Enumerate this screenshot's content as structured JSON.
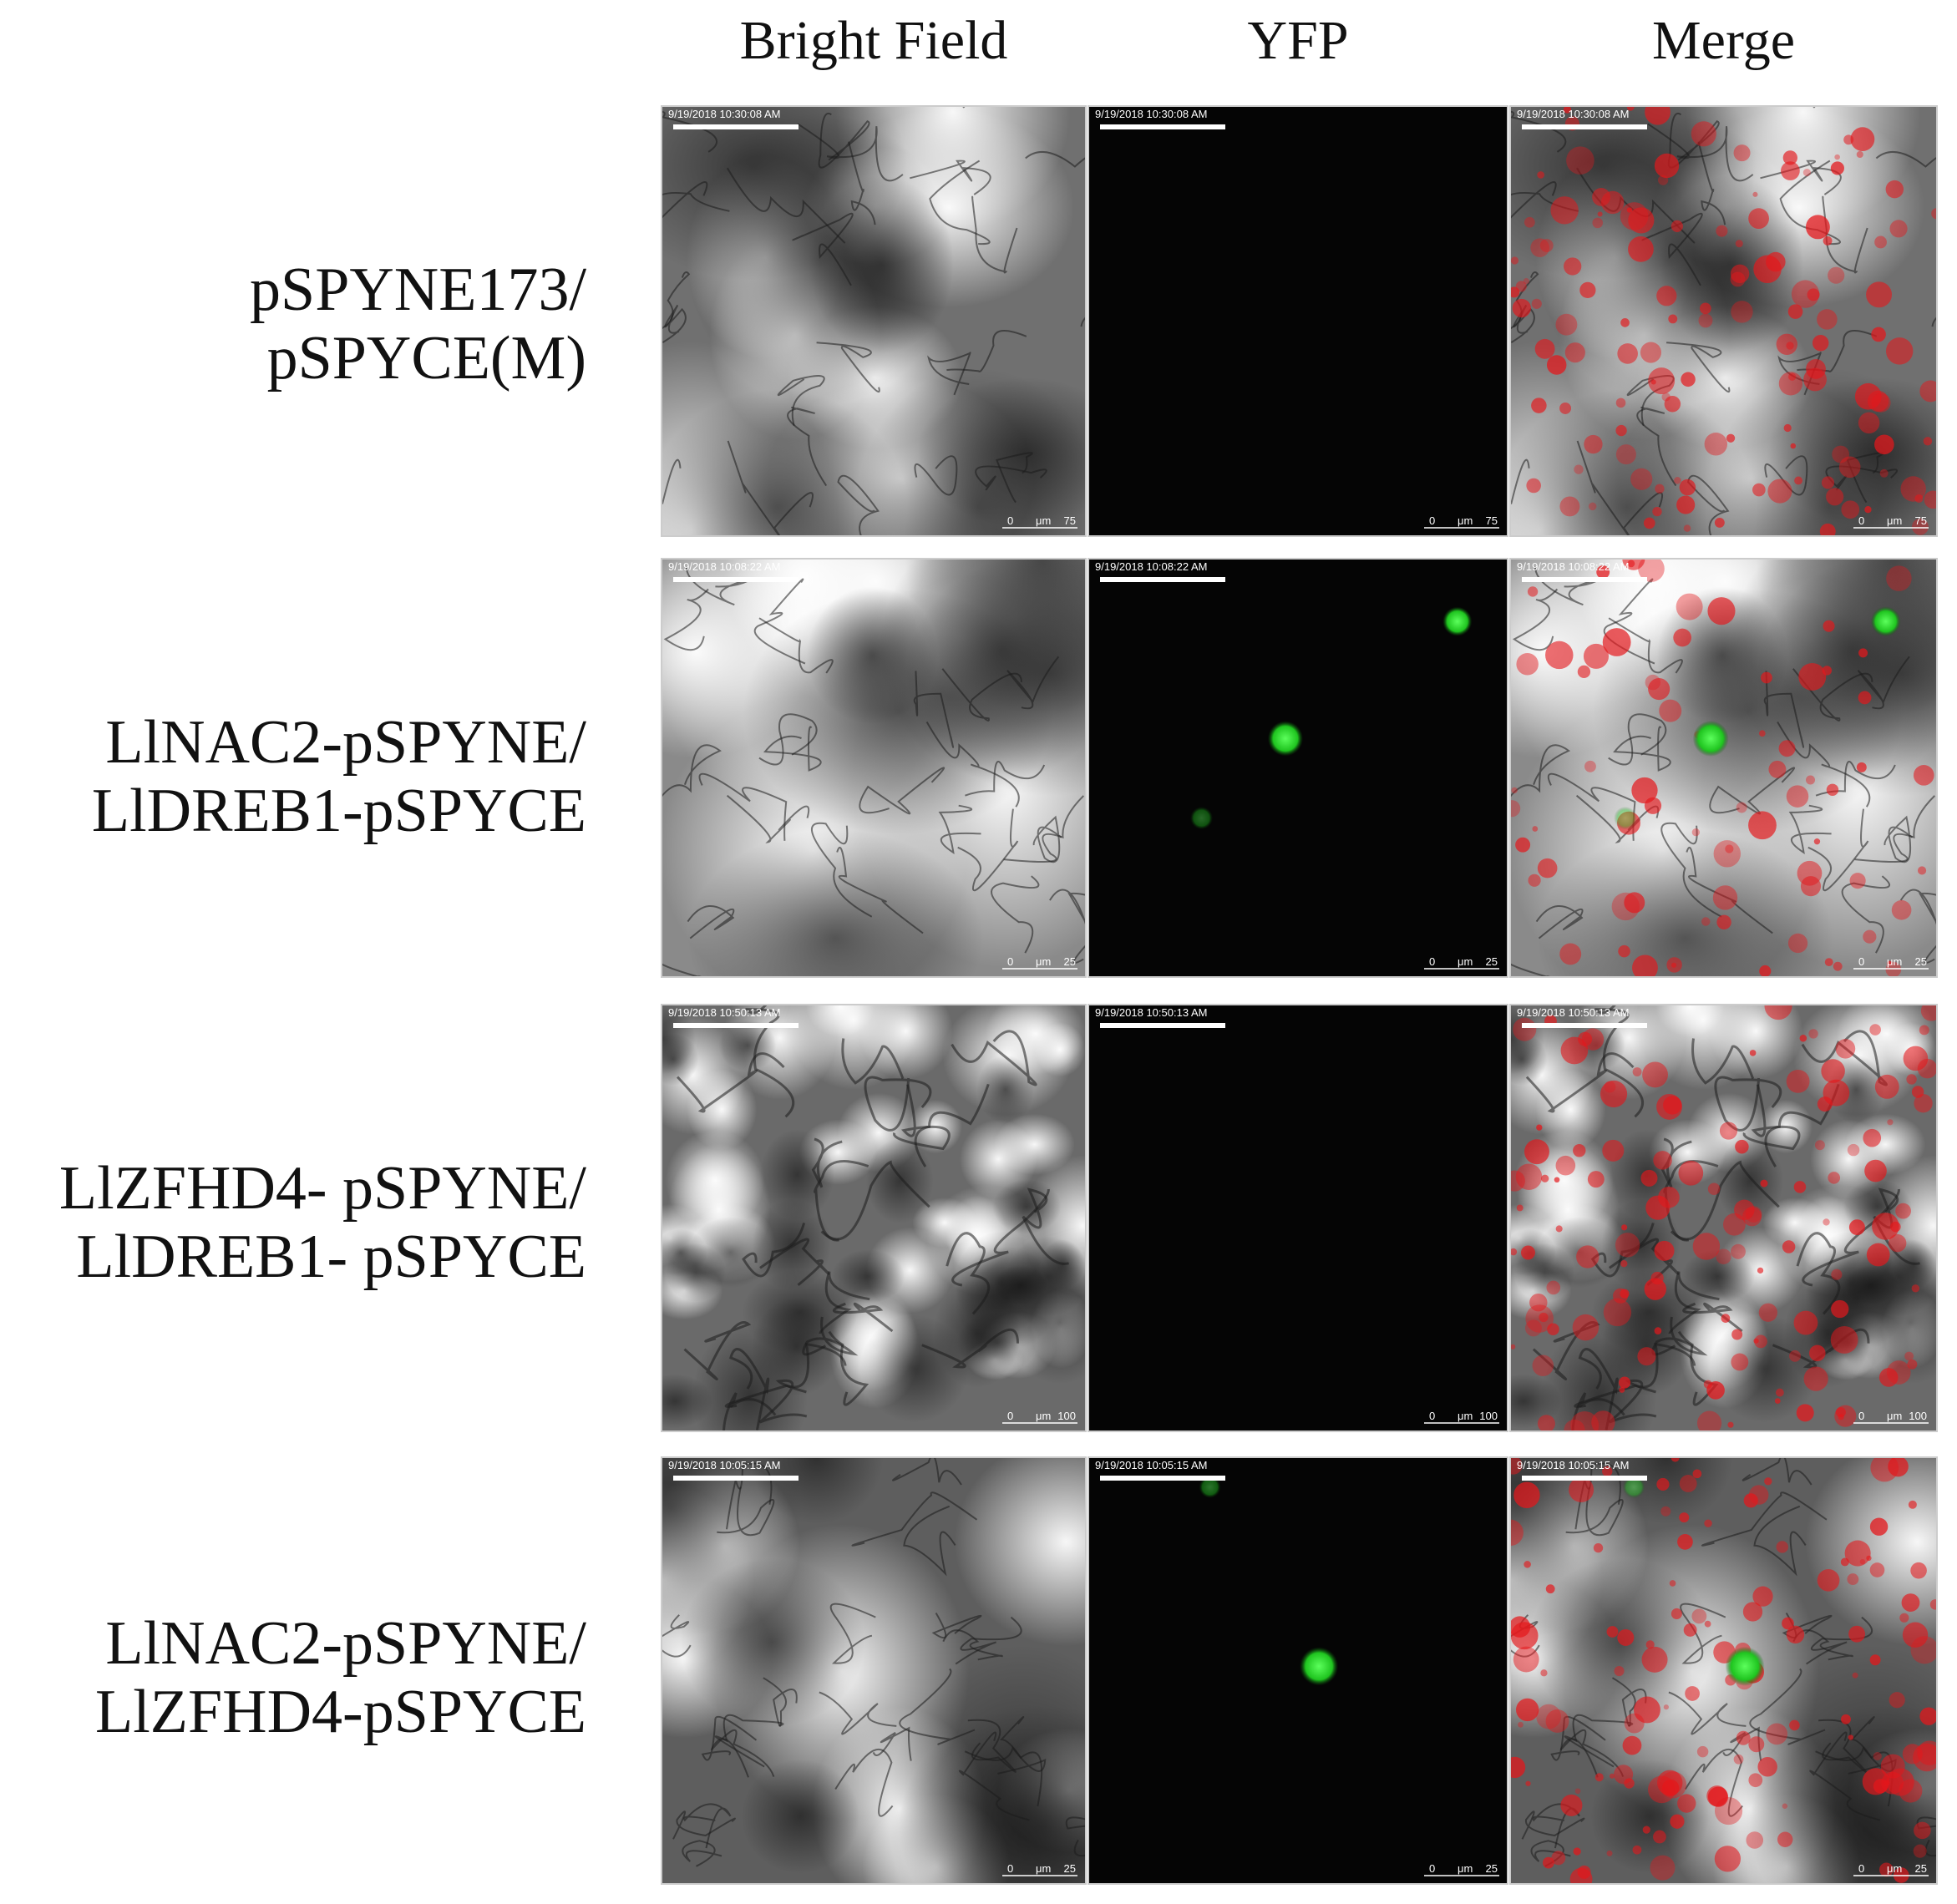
{
  "columns": [
    "Bright Field",
    "YFP",
    "Merge"
  ],
  "rows": [
    {
      "label": [
        "pSPYNE173/",
        "pSPYCE(M)"
      ],
      "timestamp": "9/19/2018 10:30:08 AM",
      "scale_bar": [
        "0",
        "μm",
        "75"
      ]
    },
    {
      "label": [
        "LlNAC2-pSPYNE/",
        "LlDREB1-pSPYCE"
      ],
      "timestamp": "9/19/2018 10:08:22 AM",
      "scale_bar": [
        "0",
        "μm",
        "25"
      ]
    },
    {
      "label": [
        "LlZFHD4- pSPYNE/",
        "LlDREB1- pSPYCE"
      ],
      "timestamp": "9/19/2018 10:50:13 AM",
      "scale_bar": [
        "0",
        "μm",
        "100"
      ]
    },
    {
      "label": [
        "LlNAC2-pSPYNE/",
        "LlZFHD4-pSPYCE"
      ],
      "timestamp": "9/19/2018 10:05:15 AM",
      "scale_bar": [
        "0",
        "μm",
        "25"
      ]
    }
  ]
}
